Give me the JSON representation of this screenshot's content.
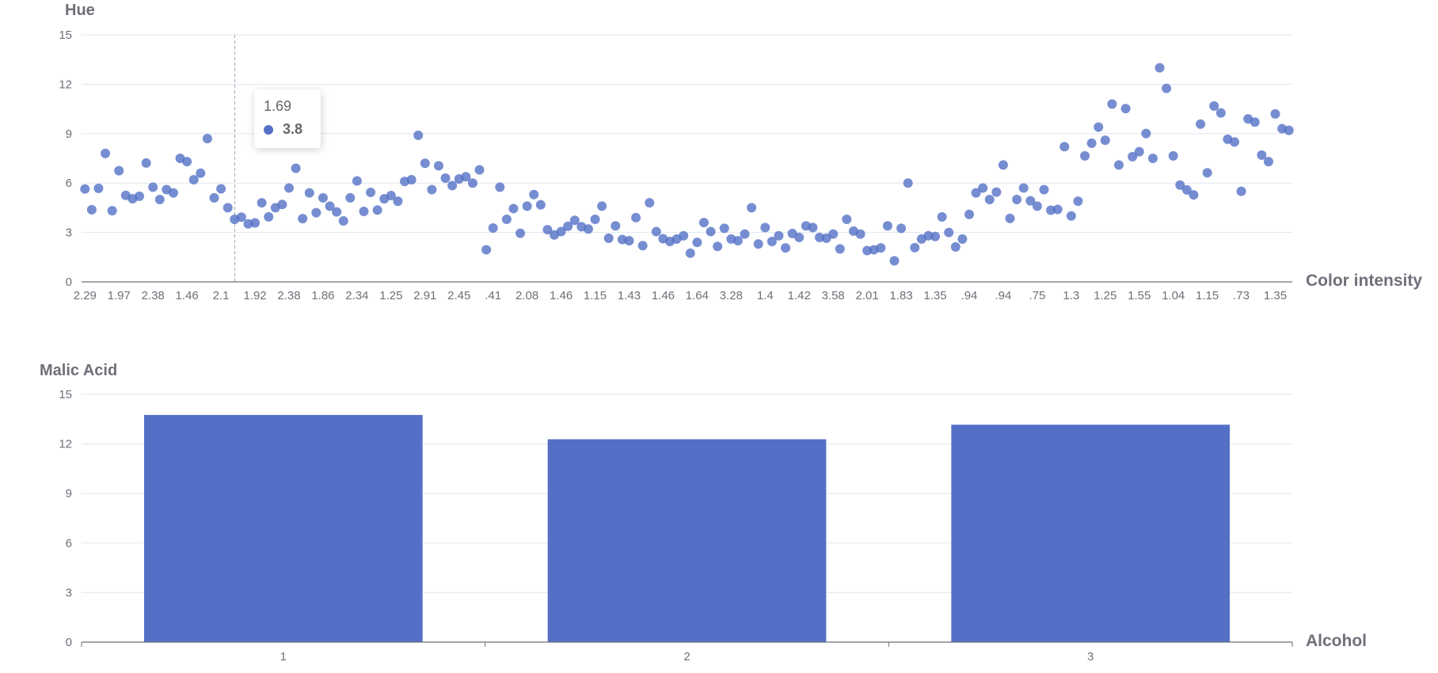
{
  "chart_data": [
    {
      "type": "scatter",
      "ylabel": "Hue",
      "xlabel": "Color intensity",
      "ylim": [
        0,
        15
      ],
      "y_ticks": [
        "0",
        "3",
        "6",
        "9",
        "12",
        "15"
      ],
      "x_tick_labels": [
        "2.29",
        "1.97",
        "2.38",
        "1.46",
        "2.1",
        "1.92",
        "2.38",
        "1.86",
        "2.34",
        "1.25",
        "2.91",
        "2.45",
        ".41",
        "2.08",
        "1.46",
        "1.15",
        "1.43",
        "1.46",
        "1.64",
        "3.28",
        "1.4",
        "1.42",
        "3.58",
        "2.01",
        "1.83",
        "1.35",
        ".94",
        ".94",
        ".75",
        "1.3",
        "1.25",
        "1.55",
        "1.04",
        "1.15",
        ".73",
        "1.35"
      ],
      "point_color": "#5470c6",
      "values": [
        5.64,
        4.38,
        5.68,
        7.8,
        4.32,
        6.75,
        5.25,
        5.05,
        5.2,
        7.22,
        5.75,
        5.0,
        5.6,
        5.4,
        7.5,
        7.3,
        6.2,
        6.6,
        8.7,
        5.1,
        5.65,
        4.5,
        3.8,
        3.93,
        3.52,
        3.58,
        4.8,
        3.95,
        4.5,
        4.7,
        5.7,
        6.9,
        3.84,
        5.4,
        4.2,
        5.1,
        4.6,
        4.25,
        3.7,
        5.1,
        6.13,
        4.28,
        5.43,
        4.36,
        5.04,
        5.24,
        4.9,
        6.1,
        6.2,
        8.9,
        7.2,
        5.6,
        7.05,
        6.3,
        5.85,
        6.25,
        6.38,
        6.0,
        6.8,
        1.95,
        3.27,
        5.75,
        3.8,
        4.45,
        2.95,
        4.6,
        5.3,
        4.68,
        3.17,
        2.85,
        3.05,
        3.38,
        3.74,
        3.35,
        3.21,
        3.8,
        4.6,
        2.65,
        3.4,
        2.57,
        2.5,
        3.9,
        2.2,
        4.8,
        3.05,
        2.62,
        2.45,
        2.6,
        2.8,
        1.74,
        2.4,
        3.6,
        3.05,
        2.15,
        3.25,
        2.6,
        2.5,
        2.9,
        4.5,
        2.3,
        3.3,
        2.45,
        2.8,
        2.06,
        2.94,
        2.7,
        3.4,
        3.3,
        2.7,
        2.65,
        2.9,
        2.0,
        3.8,
        3.08,
        2.9,
        1.9,
        1.95,
        2.06,
        3.4,
        1.28,
        3.25,
        6.0,
        2.08,
        2.6,
        2.8,
        2.76,
        3.94,
        3.0,
        2.12,
        2.6,
        4.1,
        5.4,
        5.7,
        5.0,
        5.45,
        7.1,
        3.85,
        5.0,
        5.7,
        4.92,
        4.6,
        5.6,
        4.35,
        4.4,
        8.21,
        4.0,
        4.9,
        7.65,
        8.42,
        9.4,
        8.6,
        10.8,
        7.1,
        10.52,
        7.6,
        7.9,
        9.01,
        7.5,
        13.0,
        11.75,
        7.65,
        5.88,
        5.58,
        5.28,
        9.58,
        6.62,
        10.68,
        10.26,
        8.66,
        8.5,
        5.5,
        9.899999,
        9.7,
        7.7,
        7.3,
        10.2,
        9.3,
        9.2
      ],
      "tooltip": {
        "title": "1.69",
        "value": "3.8"
      }
    },
    {
      "type": "bar",
      "ylabel": "Malic Acid",
      "xlabel": "Alcohol",
      "ylim": [
        0,
        15
      ],
      "y_ticks": [
        "0",
        "3",
        "6",
        "9",
        "12",
        "15"
      ],
      "categories": [
        "1",
        "2",
        "3"
      ],
      "values": [
        13.75,
        12.28,
        13.16
      ],
      "bar_color": "#5470c6"
    }
  ]
}
